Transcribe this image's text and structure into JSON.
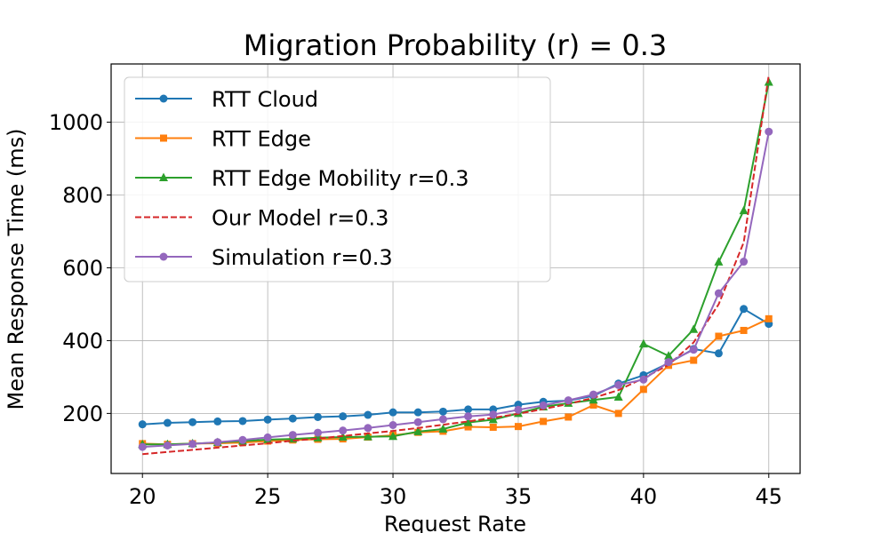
{
  "chart_data": {
    "type": "line",
    "title": "Migration Probability (r) = 0.3",
    "xlabel": "Request Rate",
    "ylabel": "Mean Response Time (ms)",
    "xlim": [
      18.75,
      46.25
    ],
    "ylim": [
      35,
      1160
    ],
    "xticks": [
      20,
      25,
      30,
      35,
      40,
      45
    ],
    "yticks": [
      200,
      400,
      600,
      800,
      1000
    ],
    "grid": true,
    "legend_position": "top-left",
    "series": [
      {
        "name": "RTT Cloud",
        "color": "#1f77b4",
        "marker": "circle",
        "linestyle": "solid",
        "x": [
          20,
          21,
          22,
          23,
          24,
          25,
          26,
          27,
          28,
          29,
          30,
          31,
          32,
          33,
          34,
          35,
          36,
          37,
          38,
          39,
          40,
          41,
          42,
          43,
          44,
          45
        ],
        "values": [
          170,
          174,
          176,
          178,
          179,
          183,
          186,
          190,
          192,
          196,
          203,
          203,
          205,
          211,
          211,
          224,
          232,
          235,
          248,
          282,
          305,
          338,
          377,
          365,
          487,
          446
        ]
      },
      {
        "name": "RTT Edge",
        "color": "#ff7f0e",
        "marker": "square",
        "linestyle": "solid",
        "x": [
          20,
          21,
          22,
          23,
          24,
          25,
          26,
          27,
          28,
          29,
          30,
          31,
          32,
          33,
          34,
          35,
          36,
          37,
          38,
          39,
          40,
          41,
          42,
          43,
          44,
          45
        ],
        "values": [
          117,
          115,
          117,
          118,
          120,
          124,
          127,
          129,
          130,
          135,
          140,
          148,
          151,
          163,
          162,
          164,
          178,
          190,
          223,
          200,
          266,
          332,
          346,
          412,
          428,
          460
        ]
      },
      {
        "name": "RTT Edge Mobility r=0.3",
        "color": "#2ca02c",
        "marker": "triangle",
        "linestyle": "solid",
        "x": [
          20,
          21,
          22,
          23,
          24,
          25,
          26,
          27,
          28,
          29,
          30,
          31,
          32,
          33,
          34,
          35,
          36,
          37,
          38,
          39,
          40,
          41,
          42,
          43,
          44,
          45
        ],
        "values": [
          115,
          115,
          117,
          120,
          124,
          128,
          130,
          133,
          135,
          136,
          137,
          150,
          157,
          175,
          183,
          200,
          218,
          228,
          237,
          245,
          391,
          358,
          431,
          616,
          757,
          1110
        ]
      },
      {
        "name": "Our Model r=0.3",
        "color": "#d62728",
        "marker": "none",
        "linestyle": "dashed",
        "x": [
          20,
          21,
          22,
          23,
          24,
          25,
          26,
          27,
          28,
          29,
          30,
          31,
          32,
          33,
          34,
          35,
          36,
          37,
          38,
          39,
          40,
          41,
          42,
          43,
          44,
          45
        ],
        "values": [
          88,
          94,
          100,
          106,
          112,
          118,
          125,
          131,
          138,
          145,
          152,
          160,
          169,
          178,
          188,
          199,
          212,
          226,
          243,
          264,
          297,
          333,
          395,
          500,
          670,
          1130
        ]
      },
      {
        "name": "Simulation r=0.3",
        "color": "#9467bd",
        "marker": "circle",
        "linestyle": "solid",
        "x": [
          20,
          21,
          22,
          23,
          24,
          25,
          26,
          27,
          28,
          29,
          30,
          31,
          32,
          33,
          34,
          35,
          36,
          37,
          38,
          39,
          40,
          41,
          42,
          43,
          44,
          45
        ],
        "values": [
          108,
          112,
          116,
          121,
          127,
          134,
          141,
          147,
          153,
          160,
          168,
          176,
          184,
          192,
          197,
          210,
          222,
          236,
          252,
          278,
          293,
          341,
          375,
          530,
          617,
          974
        ]
      }
    ]
  }
}
